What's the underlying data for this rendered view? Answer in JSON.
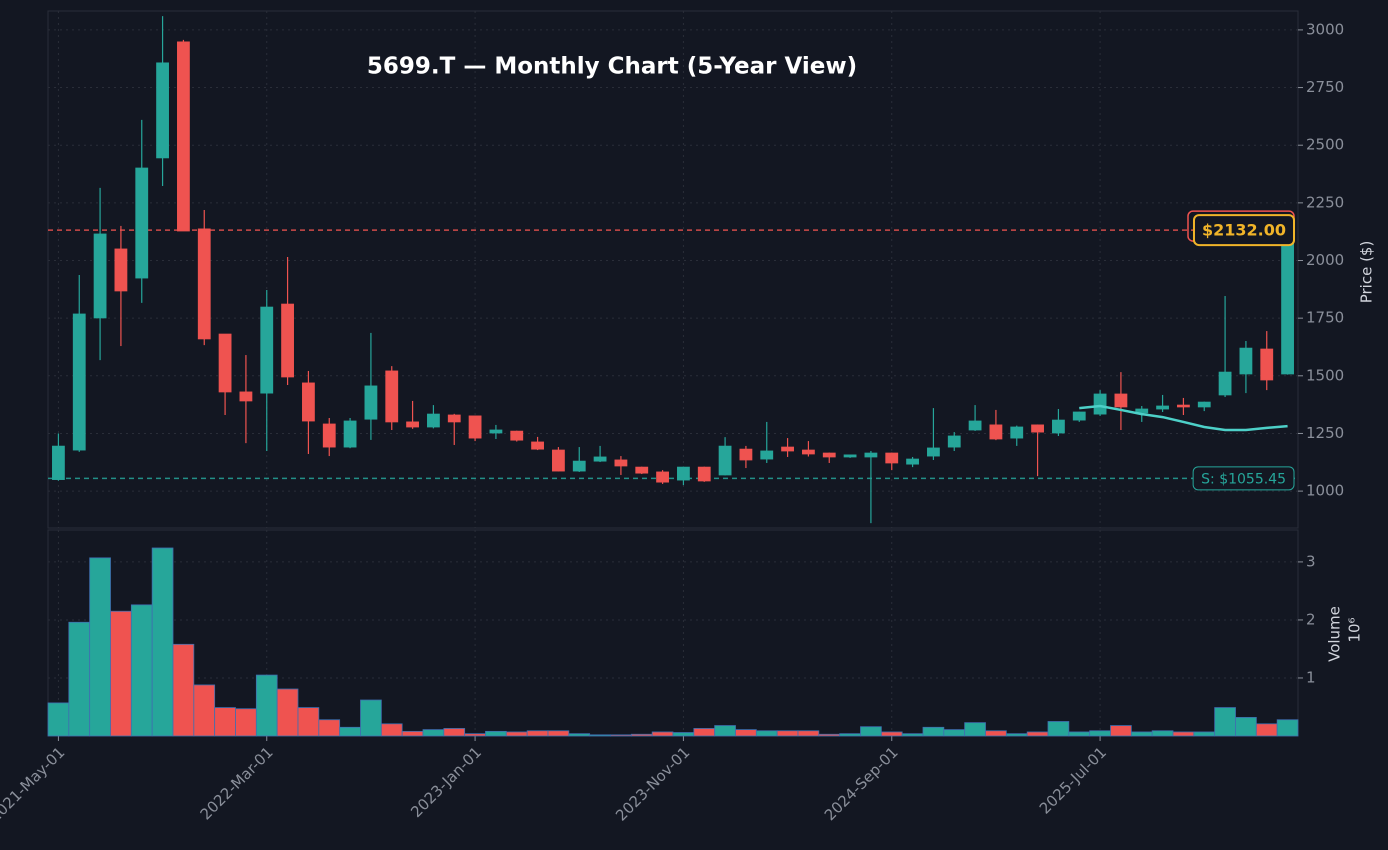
{
  "chart_data": [
    {
      "type": "candlestick",
      "title": "5699.T — Monthly Chart (5-Year View)",
      "ylabel": "Price ($)",
      "x": [
        "2021-May-01",
        "2021-Jun-01",
        "2021-Jul-01",
        "2021-Aug-01",
        "2021-Sep-01",
        "2021-Oct-01",
        "2021-Nov-01",
        "2021-Dec-01",
        "2022-Jan-01",
        "2022-Feb-01",
        "2022-Mar-01",
        "2022-Apr-01",
        "2022-May-01",
        "2022-Jun-01",
        "2022-Jul-01",
        "2022-Aug-01",
        "2022-Sep-01",
        "2022-Oct-01",
        "2022-Nov-01",
        "2022-Dec-01",
        "2023-Jan-01",
        "2023-Feb-01",
        "2023-Mar-01",
        "2023-Apr-01",
        "2023-May-01",
        "2023-Jun-01",
        "2023-Jul-01",
        "2023-Aug-01",
        "2023-Sep-01",
        "2023-Oct-01",
        "2023-Nov-01",
        "2023-Dec-01",
        "2024-Jan-01",
        "2024-Feb-01",
        "2024-Mar-01",
        "2024-Apr-01",
        "2024-May-01",
        "2024-Jun-01",
        "2024-Jul-01",
        "2024-Aug-01",
        "2024-Sep-01",
        "2024-Oct-01",
        "2024-Nov-01",
        "2024-Dec-01",
        "2025-Jan-01",
        "2025-Feb-01",
        "2025-Mar-01",
        "2025-Apr-01",
        "2025-May-01",
        "2025-Jun-01",
        "2025-Jul-01",
        "2025-Aug-01",
        "2025-Sep-01",
        "2025-Oct-01",
        "2025-Nov-01",
        "2025-Dec-01",
        "2026-Jan-01",
        "2026-Feb-01",
        "2026-Mar-01",
        "2026-Apr-01"
      ],
      "open": [
        1050,
        1178,
        1751,
        2050,
        1924,
        2445,
        2948,
        2137,
        1681,
        1430,
        1425,
        1811,
        1469,
        1291,
        1191,
        1312,
        1521,
        1300,
        1278,
        1330,
        1326,
        1252,
        1260,
        1213,
        1178,
        1087,
        1130,
        1135,
        1104,
        1083,
        1048,
        1104,
        1070,
        1182,
        1139,
        1191,
        1178,
        1165,
        1148,
        1148,
        1165,
        1117,
        1152,
        1191,
        1265,
        1287,
        1230,
        1287,
        1252,
        1308,
        1334,
        1421,
        1339,
        1356,
        1373,
        1365,
        1417,
        1508,
        1616,
        1508
      ],
      "high": [
        1250,
        1937,
        2315,
        2150,
        2610,
        3060,
        2957,
        2219,
        1681,
        1590,
        1872,
        2015,
        1521,
        1317,
        1317,
        1686,
        1542,
        1391,
        1373,
        1335,
        1326,
        1287,
        1262,
        1235,
        1191,
        1191,
        1196,
        1152,
        1106,
        1091,
        1106,
        1106,
        1234,
        1196,
        1300,
        1230,
        1217,
        1167,
        1157,
        1174,
        1167,
        1148,
        1360,
        1256,
        1373,
        1352,
        1284,
        1289,
        1356,
        1345,
        1438,
        1516,
        1369,
        1417,
        1404,
        1388,
        1846,
        1651,
        1694,
        2132
      ],
      "low": [
        1045,
        1170,
        1568,
        1629,
        1816,
        2323,
        2128,
        1633,
        1330,
        1208,
        1174,
        1460,
        1161,
        1152,
        1186,
        1222,
        1265,
        1270,
        1272,
        1200,
        1217,
        1226,
        1215,
        1178,
        1085,
        1083,
        1126,
        1070,
        1074,
        1031,
        1026,
        1040,
        1068,
        1100,
        1122,
        1148,
        1150,
        1122,
        1144,
        861,
        1091,
        1104,
        1135,
        1174,
        1261,
        1221,
        1196,
        1065,
        1239,
        1300,
        1326,
        1265,
        1300,
        1343,
        1330,
        1347,
        1408,
        1425,
        1438,
        1505
      ],
      "close": [
        1195,
        1768,
        2115,
        1868,
        2401,
        2857,
        2128,
        1660,
        1430,
        1391,
        1798,
        1495,
        1304,
        1191,
        1304,
        1456,
        1300,
        1278,
        1334,
        1300,
        1230,
        1265,
        1221,
        1182,
        1087,
        1130,
        1148,
        1109,
        1078,
        1039,
        1104,
        1044,
        1195,
        1135,
        1174,
        1174,
        1161,
        1148,
        1157,
        1165,
        1122,
        1139,
        1187,
        1239,
        1304,
        1226,
        1278,
        1256,
        1308,
        1343,
        1421,
        1365,
        1356,
        1369,
        1365,
        1386,
        1516,
        1620,
        1482,
        2132
      ],
      "ma": [
        null,
        null,
        null,
        null,
        null,
        null,
        null,
        null,
        null,
        null,
        null,
        null,
        null,
        null,
        null,
        null,
        null,
        null,
        null,
        null,
        null,
        null,
        null,
        null,
        null,
        null,
        null,
        null,
        null,
        null,
        null,
        null,
        null,
        null,
        null,
        null,
        null,
        null,
        null,
        null,
        null,
        null,
        null,
        null,
        null,
        null,
        null,
        null,
        null,
        1360,
        1369,
        1352,
        1334,
        1321,
        1300,
        1278,
        1265,
        1265,
        1274,
        1282
      ],
      "up_color": "#26a69a",
      "down_color": "#ef5350",
      "ma_color": "#4dd0c8",
      "ylim": [
        840,
        3082
      ],
      "yticks": [
        1000,
        1250,
        1500,
        1750,
        2000,
        2250,
        2500,
        2750,
        3000
      ],
      "xticks": [
        "2021-May-01",
        "2022-Mar-01",
        "2023-Jan-01",
        "2023-Nov-01",
        "2024-Sep-01",
        "2025-Jul-01"
      ],
      "grid": true,
      "lines": [
        {
          "value": 2132,
          "label": "$2132.00",
          "color": "#ef5350",
          "label_color": "#f0b429"
        },
        {
          "value": 1055.45,
          "label": "S: $1055.45",
          "color": "#26a69a",
          "label_color": "#26a69a"
        }
      ]
    },
    {
      "type": "bar",
      "ylabel": "Volume",
      "offset_label": "10⁶",
      "values": [
        0.57,
        1.96,
        3.07,
        2.15,
        2.26,
        3.24,
        1.58,
        0.88,
        0.49,
        0.47,
        1.05,
        0.81,
        0.49,
        0.28,
        0.15,
        0.62,
        0.21,
        0.08,
        0.11,
        0.13,
        0.04,
        0.08,
        0.07,
        0.09,
        0.09,
        0.04,
        0.02,
        0.02,
        0.03,
        0.07,
        0.06,
        0.13,
        0.18,
        0.11,
        0.09,
        0.09,
        0.09,
        0.03,
        0.04,
        0.16,
        0.07,
        0.04,
        0.15,
        0.11,
        0.23,
        0.09,
        0.04,
        0.07,
        0.25,
        0.07,
        0.09,
        0.18,
        0.07,
        0.09,
        0.07,
        0.07,
        0.49,
        0.32,
        0.21,
        0.28
      ],
      "ylim": [
        0,
        3.55
      ],
      "yticks": [
        1,
        2,
        3
      ],
      "grid": true
    }
  ]
}
